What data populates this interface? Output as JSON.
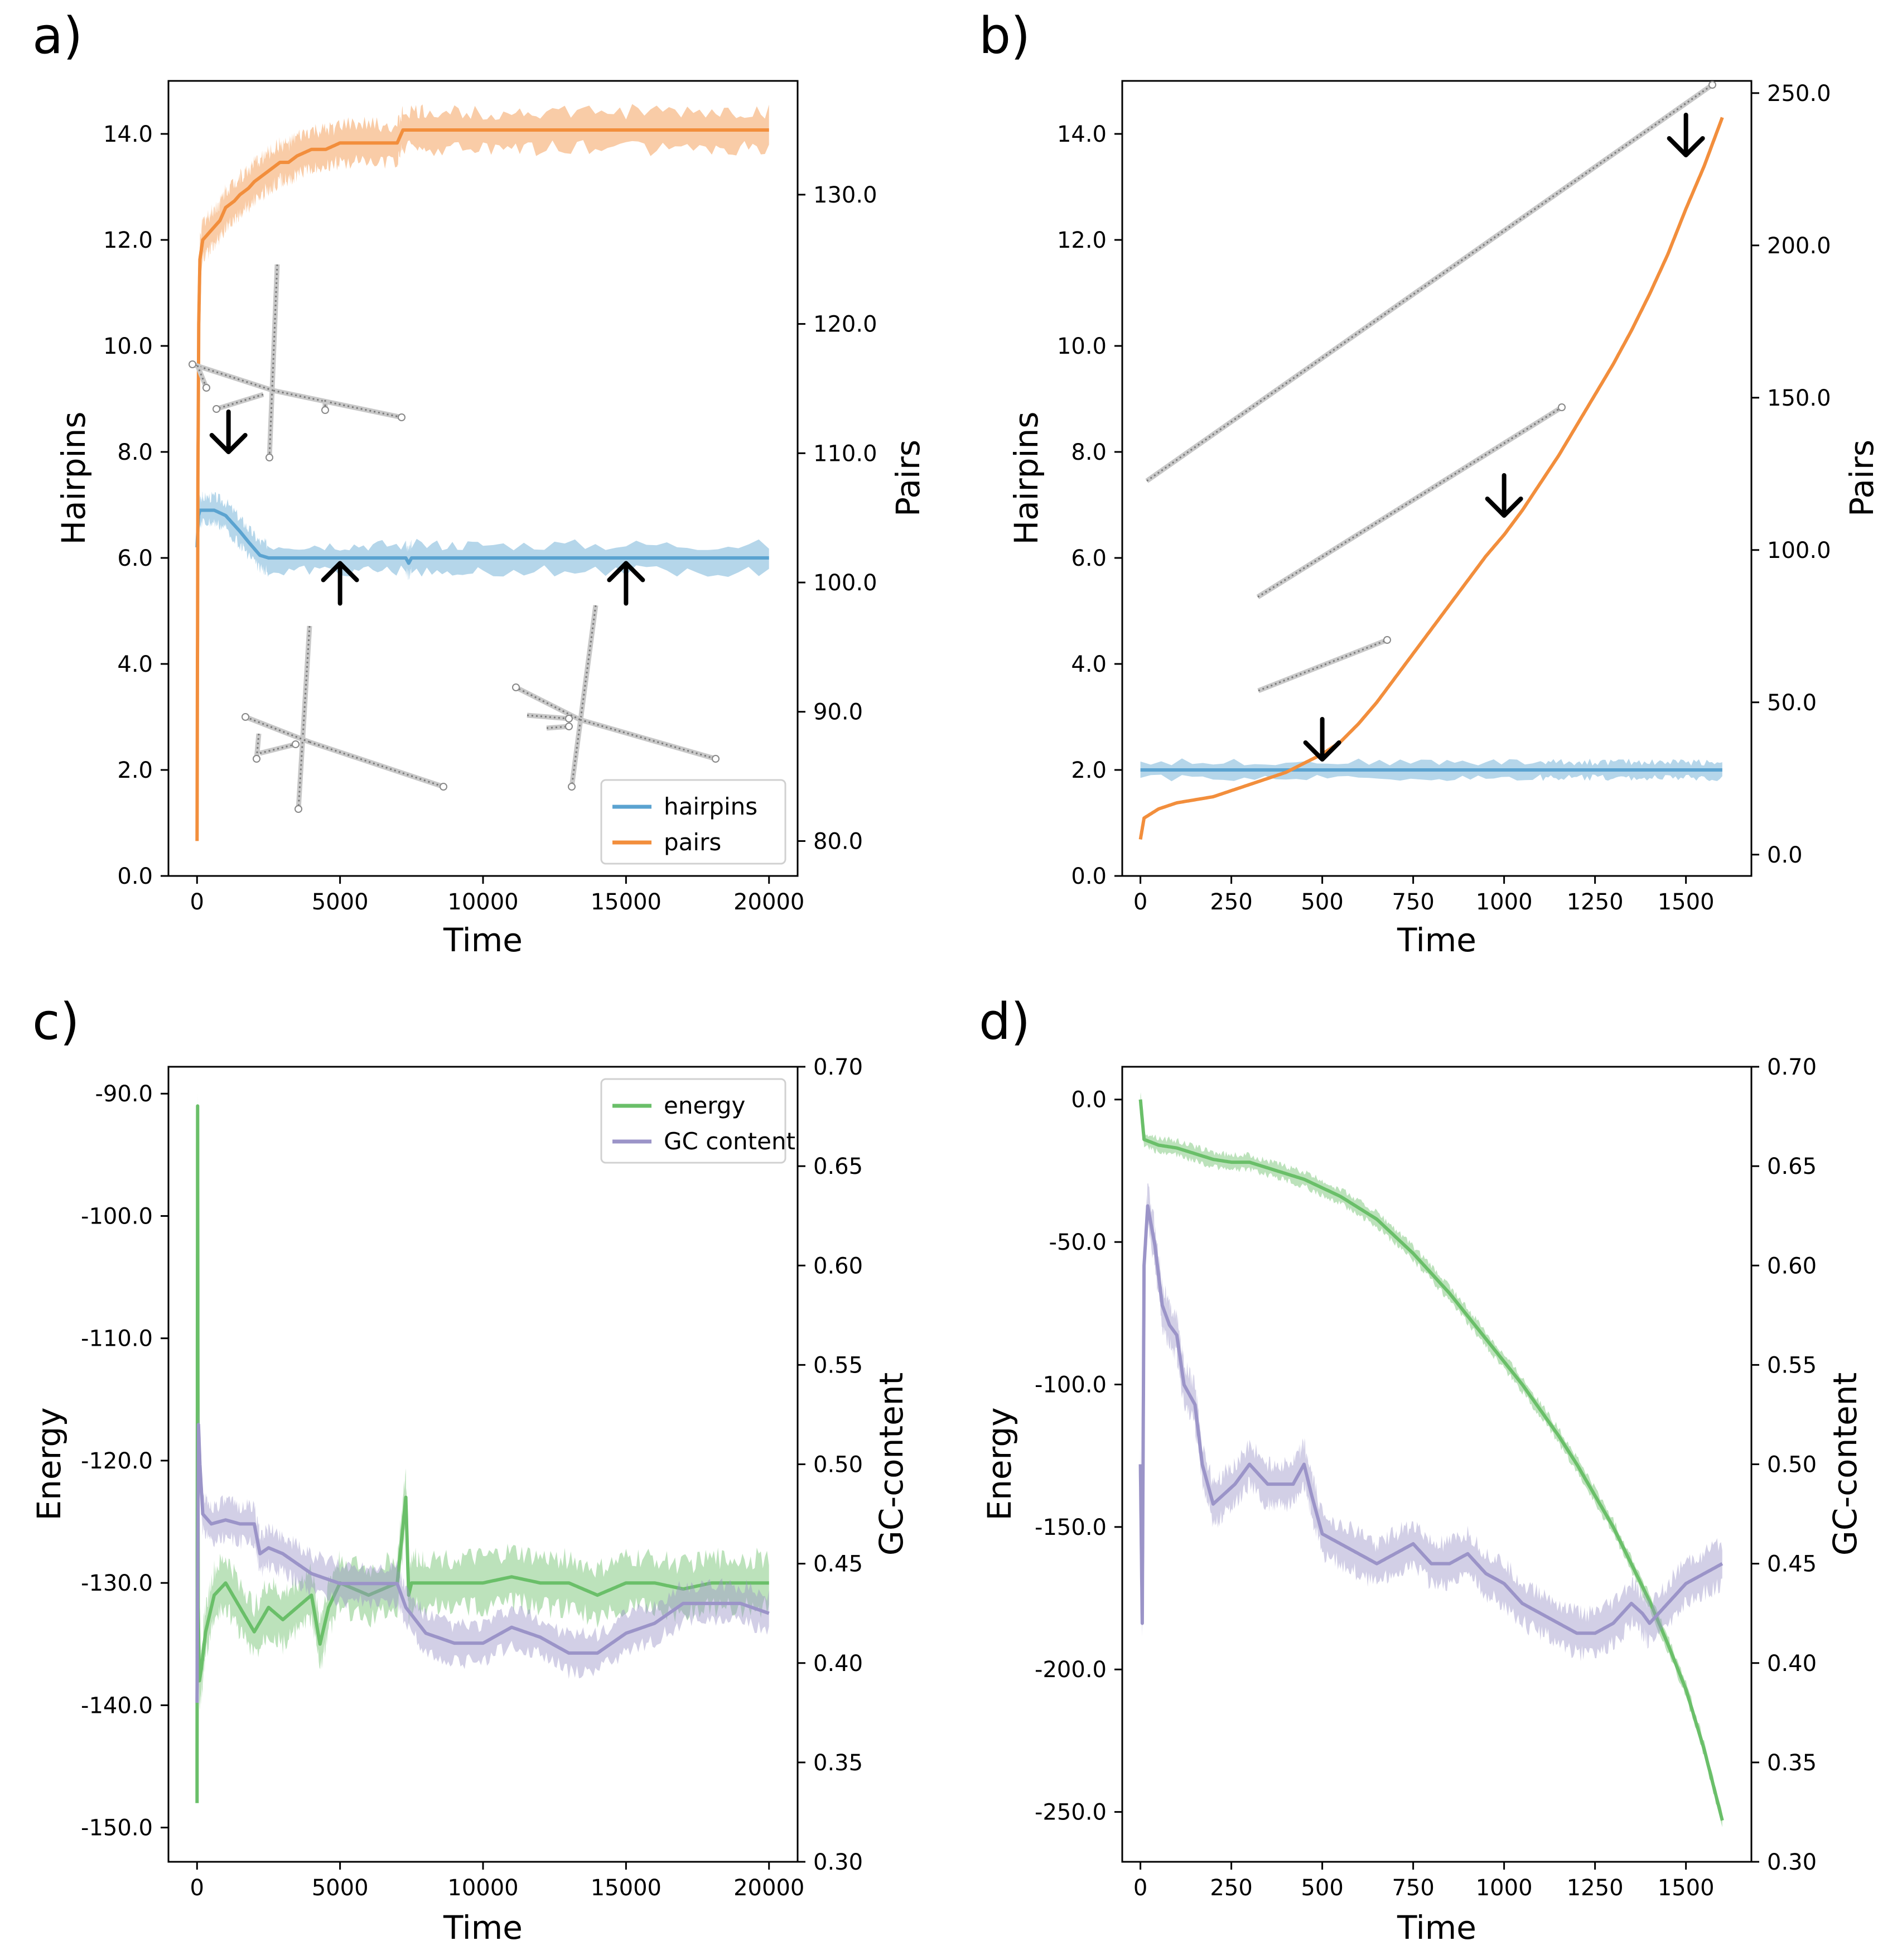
{
  "chart_data": [
    {
      "panel": "a)",
      "type": "line",
      "xlabel": "Time",
      "ylabel": "Hairpins",
      "y2label": "Pairs",
      "xlim": [
        -1000,
        21000
      ],
      "ylim": [
        0,
        15
      ],
      "y2lim": [
        77.3,
        138.8
      ],
      "xticks": [
        0,
        5000,
        10000,
        15000,
        20000
      ],
      "xtick_labels": [
        "0",
        "5000",
        "10000",
        "15000",
        "20000"
      ],
      "yticks": [
        0,
        2,
        4,
        6,
        8,
        10,
        12,
        14
      ],
      "ytick_labels": [
        "0.0",
        "2.0",
        "4.0",
        "6.0",
        "8.0",
        "10.0",
        "12.0",
        "14.0"
      ],
      "y2ticks": [
        80,
        90,
        100,
        110,
        120,
        130
      ],
      "y2tick_labels": [
        "80.0",
        "90.0",
        "100.0",
        "110.0",
        "120.0",
        "130.0"
      ],
      "legend": {
        "position": "lower-right",
        "entries": [
          {
            "label": "hairpins",
            "color": "#5ba3d0"
          },
          {
            "label": "pairs",
            "color": "#f28e3c"
          }
        ]
      },
      "series": [
        {
          "name": "hairpins",
          "axis": "left",
          "color": "#5ba3d0",
          "band": 0.25,
          "x": [
            0,
            50,
            100,
            200,
            600,
            1000,
            1500,
            1800,
            2200,
            2500,
            5000,
            7300,
            7400,
            7500,
            10000,
            15000,
            20000
          ],
          "y": [
            6.2,
            6.8,
            6.9,
            6.9,
            6.9,
            6.8,
            6.5,
            6.3,
            6.05,
            6.0,
            6.0,
            6.0,
            5.9,
            6.0,
            6.0,
            6.0,
            6.0
          ]
        },
        {
          "name": "pairs",
          "axis": "right",
          "color": "#f28e3c",
          "band": 1.4,
          "x": [
            0,
            30,
            60,
            100,
            200,
            400,
            600,
            800,
            1000,
            1300,
            1500,
            1800,
            2000,
            2300,
            2600,
            2900,
            3200,
            3500,
            4000,
            4500,
            5000,
            6000,
            7000,
            7200,
            8000,
            10000,
            12000,
            15000,
            18000,
            20000
          ],
          "y": [
            80.0,
            108.0,
            120.0,
            125.0,
            126.5,
            127.0,
            127.5,
            128.0,
            129.0,
            129.5,
            130.0,
            130.5,
            131.0,
            131.5,
            132.0,
            132.5,
            132.5,
            133.0,
            133.5,
            133.5,
            134.0,
            134.0,
            134.0,
            135.0,
            135.0,
            135.0,
            135.0,
            135.0,
            135.0,
            135.0
          ]
        }
      ],
      "annotations": [
        {
          "type": "arrow",
          "direction": "down",
          "x": 1100,
          "y": 8.0
        },
        {
          "type": "arrow",
          "direction": "up",
          "x": 5000,
          "y": 5.9
        },
        {
          "type": "arrow",
          "direction": "up",
          "x": 15000,
          "y": 5.9
        }
      ]
    },
    {
      "panel": "b)",
      "type": "line",
      "xlabel": "Time",
      "ylabel": "Hairpins",
      "y2label": "Pairs",
      "xlim": [
        -50,
        1680
      ],
      "ylim": [
        0,
        15
      ],
      "y2lim": [
        -7,
        254
      ],
      "xticks": [
        0,
        250,
        500,
        750,
        1000,
        1250,
        1500
      ],
      "xtick_labels": [
        "0",
        "250",
        "500",
        "750",
        "1000",
        "1250",
        "1500"
      ],
      "yticks": [
        0,
        2,
        4,
        6,
        8,
        10,
        12,
        14
      ],
      "ytick_labels": [
        "0.0",
        "2.0",
        "4.0",
        "6.0",
        "8.0",
        "10.0",
        "12.0",
        "14.0"
      ],
      "y2ticks": [
        0,
        50,
        100,
        150,
        200,
        250
      ],
      "y2tick_labels": [
        "0.0",
        "50.0",
        "100.0",
        "150.0",
        "200.0",
        "250.0"
      ],
      "series": [
        {
          "name": "hairpins",
          "axis": "left",
          "color": "#5ba3d0",
          "band": 0.15,
          "x": [
            0,
            400,
            800,
            1100,
            1200,
            1300,
            1400,
            1500,
            1600
          ],
          "y": [
            2.0,
            2.0,
            2.0,
            2.0,
            2.0,
            2.0,
            2.0,
            2.0,
            2.0
          ]
        },
        {
          "name": "pairs",
          "axis": "right",
          "color": "#f28e3c",
          "band": 0,
          "x": [
            0,
            10,
            50,
            100,
            150,
            200,
            250,
            300,
            350,
            400,
            450,
            500,
            550,
            600,
            650,
            700,
            750,
            800,
            850,
            900,
            950,
            1000,
            1050,
            1100,
            1150,
            1200,
            1250,
            1300,
            1350,
            1400,
            1450,
            1500,
            1550,
            1600
          ],
          "y": [
            5,
            12,
            15,
            17,
            18,
            19,
            21,
            23,
            25,
            27,
            30,
            33,
            37,
            43,
            50,
            58,
            66,
            74,
            82,
            90,
            98,
            105,
            113,
            122,
            131,
            141,
            151,
            161,
            172,
            184,
            197,
            212,
            226,
            242
          ]
        }
      ],
      "annotations": [
        {
          "type": "arrow",
          "direction": "down",
          "x": 500,
          "y": 2.2
        },
        {
          "type": "arrow",
          "direction": "down",
          "x": 1000,
          "y": 6.8
        },
        {
          "type": "arrow",
          "direction": "down",
          "x": 1500,
          "y": 13.6
        }
      ]
    },
    {
      "panel": "c)",
      "type": "line",
      "xlabel": "Time",
      "ylabel": "Energy",
      "y2label": "GC-content",
      "xlim": [
        -1000,
        21000
      ],
      "ylim": [
        -152.8,
        -87.8
      ],
      "y2lim": [
        0.3,
        0.7
      ],
      "xticks": [
        0,
        5000,
        10000,
        15000,
        20000
      ],
      "xtick_labels": [
        "0",
        "5000",
        "10000",
        "15000",
        "20000"
      ],
      "yticks": [
        -150,
        -140,
        -130,
        -120,
        -110,
        -100,
        -90
      ],
      "ytick_labels": [
        "-150.0",
        "-140.0",
        "-130.0",
        "-120.0",
        "-110.0",
        "-100.0",
        "-90.0"
      ],
      "y2ticks": [
        0.3,
        0.35,
        0.4,
        0.45,
        0.5,
        0.55,
        0.6,
        0.65,
        0.7
      ],
      "y2tick_labels": [
        "0.30",
        "0.35",
        "0.40",
        "0.45",
        "0.50",
        "0.55",
        "0.60",
        "0.65",
        "0.70"
      ],
      "legend": {
        "position": "upper-right",
        "entries": [
          {
            "label": "energy",
            "color": "#6abf69"
          },
          {
            "label": "GC content",
            "color": "#9b94c8"
          }
        ]
      },
      "series": [
        {
          "name": "energy",
          "axis": "left",
          "color": "#6abf69",
          "band": 2.0,
          "x": [
            0,
            20,
            40,
            80,
            150,
            300,
            600,
            1000,
            1500,
            2000,
            2500,
            3000,
            3500,
            4000,
            4300,
            4600,
            5000,
            6000,
            7000,
            7300,
            7400,
            7500,
            8000,
            9000,
            10000,
            11000,
            12000,
            13000,
            14000,
            15000,
            16000,
            17000,
            18000,
            19000,
            20000
          ],
          "y": [
            -148.0,
            -91.0,
            -132.0,
            -138.0,
            -137.0,
            -134.0,
            -131.0,
            -130.0,
            -132.0,
            -134.0,
            -132.0,
            -133.0,
            -132.0,
            -131.0,
            -135.0,
            -132.0,
            -130.0,
            -131.0,
            -130.0,
            -123.0,
            -131.0,
            -130.0,
            -130.0,
            -130.0,
            -130.0,
            -129.5,
            -130.0,
            -130.0,
            -131.0,
            -130.0,
            -130.0,
            -130.5,
            -130.0,
            -130.0,
            -130.0
          ]
        },
        {
          "name": "GC content",
          "axis": "right",
          "color": "#9b94c8",
          "band": 0.009,
          "x": [
            0,
            50,
            100,
            200,
            500,
            1000,
            1500,
            2000,
            2200,
            2500,
            3000,
            3500,
            4000,
            5000,
            6000,
            7000,
            7300,
            8000,
            9000,
            10000,
            11000,
            12000,
            13000,
            14000,
            15000,
            16000,
            17000,
            18000,
            19000,
            20000
          ],
          "y": [
            0.38,
            0.52,
            0.5,
            0.475,
            0.47,
            0.472,
            0.47,
            0.47,
            0.455,
            0.458,
            0.455,
            0.45,
            0.445,
            0.44,
            0.44,
            0.44,
            0.428,
            0.415,
            0.41,
            0.41,
            0.418,
            0.413,
            0.405,
            0.405,
            0.415,
            0.42,
            0.43,
            0.43,
            0.43,
            0.425
          ]
        }
      ]
    },
    {
      "panel": "d)",
      "type": "line",
      "xlabel": "Time",
      "ylabel": "Energy",
      "y2label": "GC-content",
      "xlim": [
        -50,
        1680
      ],
      "ylim": [
        -267.5,
        11.5
      ],
      "y2lim": [
        0.3,
        0.7
      ],
      "xticks": [
        0,
        250,
        500,
        750,
        1000,
        1250,
        1500
      ],
      "xtick_labels": [
        "0",
        "250",
        "500",
        "750",
        "1000",
        "1250",
        "1500"
      ],
      "yticks": [
        -250,
        -200,
        -150,
        -100,
        -50,
        0
      ],
      "ytick_labels": [
        "-250.0",
        "-200.0",
        "-150.0",
        "-100.0",
        "-50.0",
        "0.0"
      ],
      "y2ticks": [
        0.3,
        0.35,
        0.4,
        0.45,
        0.5,
        0.55,
        0.6,
        0.65,
        0.7
      ],
      "y2tick_labels": [
        "0.30",
        "0.35",
        "0.40",
        "0.45",
        "0.50",
        "0.55",
        "0.60",
        "0.65",
        "0.70"
      ],
      "series": [
        {
          "name": "energy",
          "axis": "left",
          "color": "#6abf69",
          "band": 2.5,
          "x": [
            0,
            10,
            50,
            100,
            150,
            200,
            250,
            300,
            350,
            400,
            450,
            500,
            550,
            600,
            650,
            700,
            750,
            800,
            850,
            900,
            950,
            1000,
            1050,
            1100,
            1150,
            1200,
            1250,
            1300,
            1350,
            1400,
            1450,
            1500,
            1550,
            1600
          ],
          "y": [
            0,
            -14,
            -16,
            -17,
            -19,
            -21,
            -22,
            -22,
            -24,
            -26,
            -28,
            -31,
            -34,
            -38,
            -42,
            -48,
            -54,
            -61,
            -68,
            -76,
            -84,
            -92,
            -100,
            -109,
            -118,
            -128,
            -139,
            -150,
            -163,
            -176,
            -191,
            -207,
            -228,
            -253
          ]
        },
        {
          "name": "GC content",
          "axis": "right",
          "color": "#9b94c8",
          "band": 0.01,
          "x": [
            0,
            5,
            10,
            20,
            40,
            60,
            80,
            100,
            120,
            150,
            170,
            200,
            230,
            260,
            300,
            350,
            380,
            420,
            450,
            470,
            500,
            550,
            600,
            650,
            700,
            750,
            800,
            850,
            900,
            950,
            1000,
            1050,
            1100,
            1150,
            1200,
            1250,
            1300,
            1350,
            1380,
            1400,
            1450,
            1500,
            1550,
            1600
          ],
          "y": [
            0.5,
            0.42,
            0.6,
            0.63,
            0.61,
            0.58,
            0.57,
            0.565,
            0.54,
            0.53,
            0.5,
            0.48,
            0.485,
            0.49,
            0.5,
            0.49,
            0.49,
            0.49,
            0.5,
            0.485,
            0.465,
            0.46,
            0.455,
            0.45,
            0.455,
            0.46,
            0.45,
            0.45,
            0.455,
            0.445,
            0.44,
            0.43,
            0.425,
            0.42,
            0.415,
            0.415,
            0.42,
            0.43,
            0.425,
            0.42,
            0.43,
            0.44,
            0.445,
            0.45
          ]
        }
      ]
    }
  ]
}
